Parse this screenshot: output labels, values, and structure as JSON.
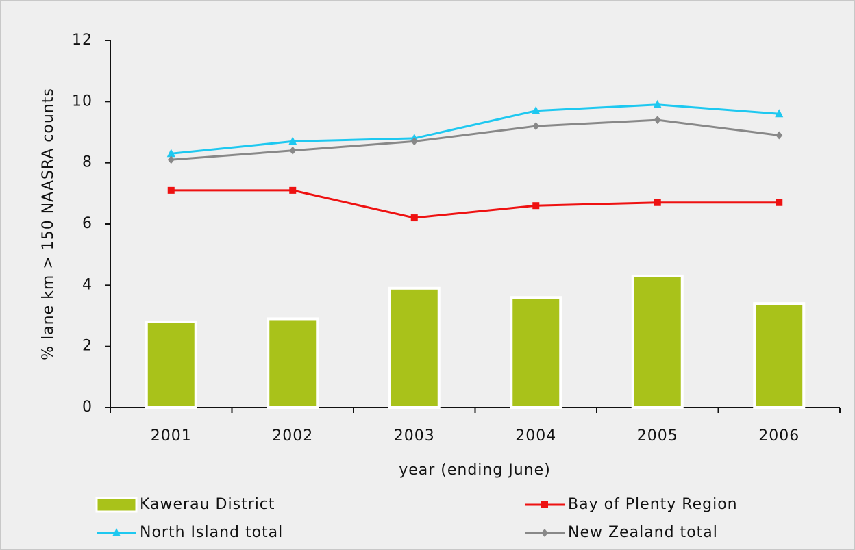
{
  "chart_data": {
    "type": "bar",
    "x_label": "year (ending June)",
    "y_label": "% lane km > 150 NAASRA counts",
    "categories": [
      "2001",
      "2002",
      "2003",
      "2004",
      "2005",
      "2006"
    ],
    "series": [
      {
        "name": "Kawerau District",
        "type": "bar",
        "color": "#a9c21a",
        "values": [
          2.8,
          2.9,
          3.9,
          3.6,
          4.3,
          3.4
        ]
      },
      {
        "name": "Bay of Plenty Region",
        "type": "line",
        "marker": "square",
        "color": "#ee1111",
        "values": [
          7.1,
          7.1,
          6.2,
          6.6,
          6.7,
          6.7
        ]
      },
      {
        "name": "North Island total",
        "type": "line",
        "marker": "triangle",
        "color": "#1ec8f0",
        "values": [
          8.3,
          8.7,
          8.8,
          9.7,
          9.9,
          9.6
        ]
      },
      {
        "name": "New Zealand total",
        "type": "line",
        "marker": "diamond",
        "color": "#888888",
        "values": [
          8.1,
          8.4,
          8.7,
          9.2,
          9.4,
          8.9
        ]
      }
    ],
    "ylim": [
      0,
      12
    ],
    "yticks": [
      0,
      2,
      4,
      6,
      8,
      10,
      12
    ],
    "grid": false,
    "legend": "bottom"
  }
}
